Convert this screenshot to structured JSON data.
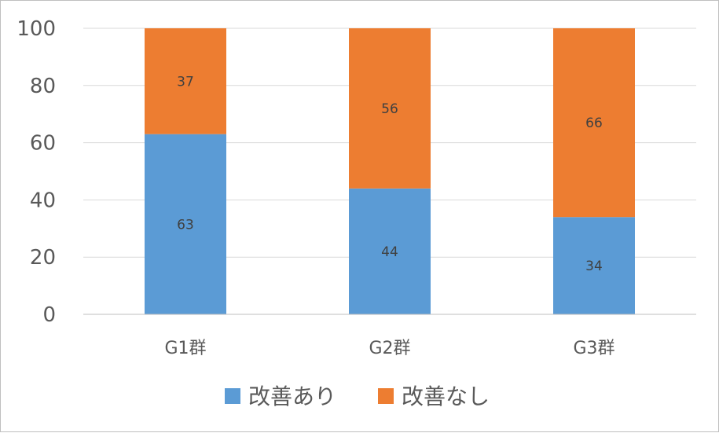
{
  "chart_data": {
    "type": "bar",
    "stacked": true,
    "categories": [
      "G1群",
      "G2群",
      "G3群"
    ],
    "series": [
      {
        "name": "改善あり",
        "values": [
          63,
          44,
          34
        ],
        "color": "#5B9BD5"
      },
      {
        "name": "改善なし",
        "values": [
          37,
          56,
          66
        ],
        "color": "#ED7D31"
      }
    ],
    "ylim": [
      0,
      100
    ],
    "yticks": [
      0,
      20,
      40,
      60,
      80,
      100
    ],
    "grid": true,
    "legend": "bottom",
    "data_labels": true
  }
}
